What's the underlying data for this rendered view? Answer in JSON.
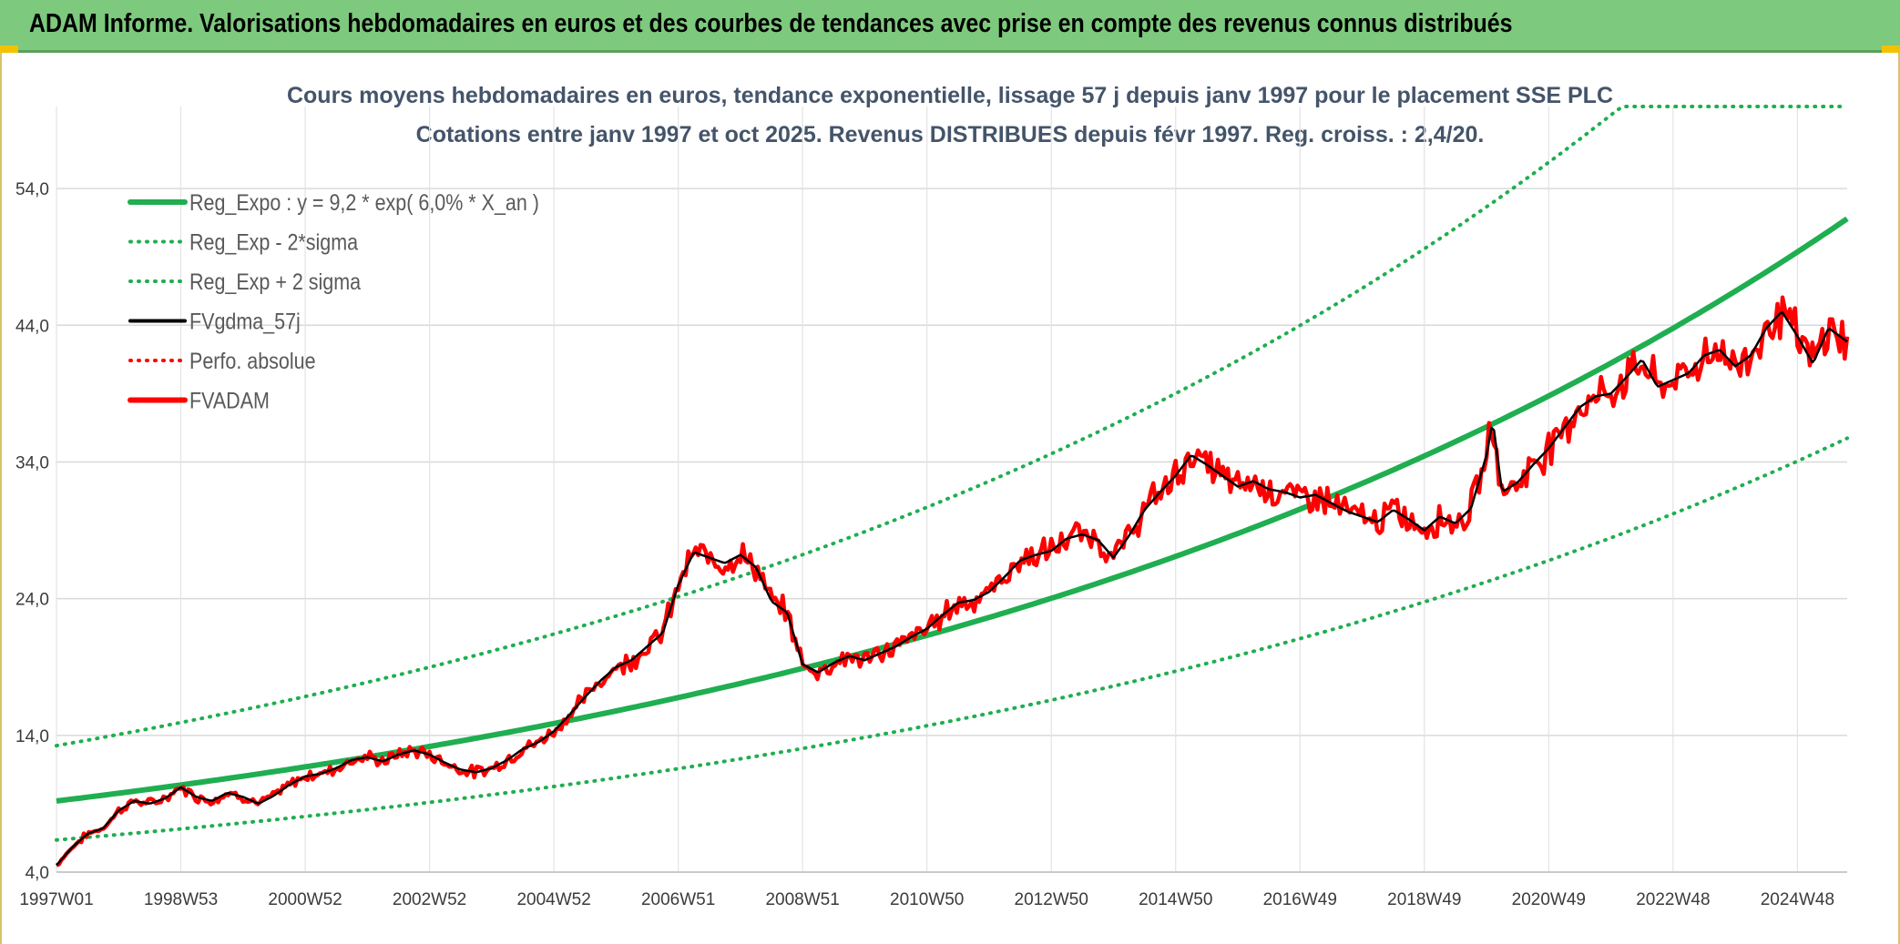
{
  "header": {
    "title": "ADAM Informe. Valorisations hebdomadaires en euros et des courbes de tendances avec prise en compte des revenus connus distribués"
  },
  "colors": {
    "banner": "#7dc97d",
    "trend": "#1fae50",
    "price": "#ff0000",
    "smooth": "#000000",
    "grid": "#d9d9d9"
  },
  "chart_data": {
    "type": "line",
    "title": "Cours moyens hebdomadaires en euros, tendance exponentielle, lissage 57 j depuis janv 1997 pour le placement SSE PLC",
    "subtitle": "Cotations entre janv 1997 et oct 2025. Revenus DISTRIBUES depuis févr 1997. Reg. croiss. : 2,4/20.",
    "xlabel": "",
    "ylabel": "",
    "x_range": [
      1997.0,
      2025.8
    ],
    "ylim": [
      4,
      60
    ],
    "y_ticks": [
      4,
      14,
      24,
      34,
      44,
      54
    ],
    "y_tick_labels": [
      "4,0",
      "14,0",
      "24,0",
      "34,0",
      "44,0",
      "54,0"
    ],
    "x_ticks": [
      {
        "x": 1997.0,
        "label": "1997W01"
      },
      {
        "x": 1999.0,
        "label": "1998W53"
      },
      {
        "x": 2001.0,
        "label": "2000W52"
      },
      {
        "x": 2003.0,
        "label": "2002W52"
      },
      {
        "x": 2005.0,
        "label": "2004W52"
      },
      {
        "x": 2007.0,
        "label": "2006W51"
      },
      {
        "x": 2009.0,
        "label": "2008W51"
      },
      {
        "x": 2011.0,
        "label": "2010W50"
      },
      {
        "x": 2013.0,
        "label": "2012W50"
      },
      {
        "x": 2015.0,
        "label": "2014W50"
      },
      {
        "x": 2017.0,
        "label": "2016W49"
      },
      {
        "x": 2019.0,
        "label": "2018W49"
      },
      {
        "x": 2021.0,
        "label": "2020W49"
      },
      {
        "x": 2023.0,
        "label": "2022W48"
      },
      {
        "x": 2025.0,
        "label": "2024W48"
      }
    ],
    "legend_position": "top-left",
    "legend": [
      {
        "name": "Reg_Expo : y = 9,2 * exp( 6,0% *  X_an )",
        "color": "#1fae50",
        "style": "solid-thick"
      },
      {
        "name": "Reg_Exp - 2*sigma",
        "color": "#1fae50",
        "style": "dotted"
      },
      {
        "name": "Reg_Exp + 2 sigma",
        "color": "#1fae50",
        "style": "dotted"
      },
      {
        "name": "FVgdma_57j",
        "color": "#000000",
        "style": "solid"
      },
      {
        "name": "Perfo. absolue",
        "color": "#ff0000",
        "style": "dotted"
      },
      {
        "name": "FVADAM",
        "color": "#ff0000",
        "style": "solid-thick"
      }
    ],
    "regression": {
      "a": 9.2,
      "rate": 0.06,
      "sigma_factor_low": 0.69,
      "sigma_factor_high": 1.44
    },
    "series": [
      {
        "name": "FVADAM",
        "points": [
          [
            1997.0,
            4.5
          ],
          [
            1997.25,
            5.8
          ],
          [
            1997.5,
            6.8
          ],
          [
            1997.75,
            7.2
          ],
          [
            1998.0,
            8.5
          ],
          [
            1998.25,
            9.2
          ],
          [
            1998.5,
            9.0
          ],
          [
            1998.75,
            9.4
          ],
          [
            1999.0,
            10.2
          ],
          [
            1999.25,
            9.5
          ],
          [
            1999.5,
            9.2
          ],
          [
            1999.75,
            9.8
          ],
          [
            2000.0,
            9.5
          ],
          [
            2000.25,
            9.0
          ],
          [
            2000.5,
            9.6
          ],
          [
            2000.75,
            10.4
          ],
          [
            2001.0,
            11.0
          ],
          [
            2001.25,
            11.2
          ],
          [
            2001.5,
            11.6
          ],
          [
            2001.75,
            12.2
          ],
          [
            2002.0,
            12.4
          ],
          [
            2002.25,
            12.1
          ],
          [
            2002.5,
            12.6
          ],
          [
            2002.75,
            12.9
          ],
          [
            2003.0,
            12.6
          ],
          [
            2003.25,
            12.0
          ],
          [
            2003.5,
            11.5
          ],
          [
            2003.75,
            11.3
          ],
          [
            2004.0,
            11.6
          ],
          [
            2004.25,
            12.2
          ],
          [
            2004.5,
            13.0
          ],
          [
            2004.75,
            13.5
          ],
          [
            2005.0,
            14.3
          ],
          [
            2005.25,
            15.5
          ],
          [
            2005.5,
            16.8
          ],
          [
            2005.75,
            18.0
          ],
          [
            2006.0,
            19.0
          ],
          [
            2006.25,
            19.5
          ],
          [
            2006.5,
            20.5
          ],
          [
            2006.75,
            21.5
          ],
          [
            2007.0,
            25.0
          ],
          [
            2007.25,
            27.4
          ],
          [
            2007.5,
            27.0
          ],
          [
            2007.75,
            26.6
          ],
          [
            2008.0,
            27.2
          ],
          [
            2008.25,
            26.3
          ],
          [
            2008.5,
            23.8
          ],
          [
            2008.75,
            23.0
          ],
          [
            2009.0,
            19.2
          ],
          [
            2009.25,
            18.6
          ],
          [
            2009.5,
            19.3
          ],
          [
            2009.75,
            19.8
          ],
          [
            2010.0,
            19.5
          ],
          [
            2010.25,
            20.0
          ],
          [
            2010.5,
            20.5
          ],
          [
            2010.75,
            21.2
          ],
          [
            2011.0,
            21.8
          ],
          [
            2011.25,
            22.8
          ],
          [
            2011.5,
            23.7
          ],
          [
            2011.75,
            23.9
          ],
          [
            2012.0,
            24.5
          ],
          [
            2012.25,
            25.6
          ],
          [
            2012.5,
            26.8
          ],
          [
            2012.75,
            27.2
          ],
          [
            2013.0,
            27.5
          ],
          [
            2013.25,
            28.4
          ],
          [
            2013.5,
            28.7
          ],
          [
            2013.75,
            28.3
          ],
          [
            2014.0,
            27.0
          ],
          [
            2014.25,
            28.6
          ],
          [
            2014.5,
            30.5
          ],
          [
            2014.75,
            31.8
          ],
          [
            2015.0,
            33.0
          ],
          [
            2015.25,
            34.5
          ],
          [
            2015.5,
            33.8
          ],
          [
            2015.75,
            33.0
          ],
          [
            2016.0,
            32.2
          ],
          [
            2016.25,
            32.6
          ],
          [
            2016.5,
            32.0
          ],
          [
            2016.75,
            31.8
          ],
          [
            2017.0,
            31.4
          ],
          [
            2017.25,
            31.6
          ],
          [
            2017.5,
            31.0
          ],
          [
            2017.75,
            30.4
          ],
          [
            2018.0,
            30.0
          ],
          [
            2018.25,
            29.6
          ],
          [
            2018.5,
            30.5
          ],
          [
            2018.75,
            29.8
          ],
          [
            2019.0,
            29.0
          ],
          [
            2019.25,
            30.0
          ],
          [
            2019.5,
            29.5
          ],
          [
            2019.75,
            30.6
          ],
          [
            2020.0,
            34.5
          ],
          [
            2020.1,
            37.0
          ],
          [
            2020.25,
            31.8
          ],
          [
            2020.5,
            32.5
          ],
          [
            2020.75,
            33.8
          ],
          [
            2021.0,
            35.0
          ],
          [
            2021.25,
            36.5
          ],
          [
            2021.5,
            38.0
          ],
          [
            2021.75,
            38.8
          ],
          [
            2022.0,
            39.0
          ],
          [
            2022.25,
            40.2
          ],
          [
            2022.5,
            41.5
          ],
          [
            2022.75,
            39.5
          ],
          [
            2023.0,
            40.0
          ],
          [
            2023.25,
            40.5
          ],
          [
            2023.5,
            41.8
          ],
          [
            2023.75,
            42.2
          ],
          [
            2024.0,
            41.0
          ],
          [
            2024.25,
            41.8
          ],
          [
            2024.5,
            43.8
          ],
          [
            2024.75,
            45.0
          ],
          [
            2025.0,
            43.2
          ],
          [
            2025.25,
            41.2
          ],
          [
            2025.5,
            43.8
          ],
          [
            2025.8,
            42.8
          ]
        ]
      }
    ]
  }
}
